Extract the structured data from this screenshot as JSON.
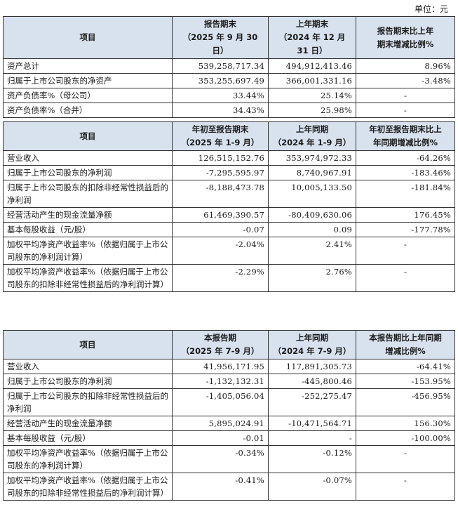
{
  "unit_label": "单位：元",
  "table1": {
    "headers": [
      {
        "line1": "项目",
        "line2": ""
      },
      {
        "line1": "报告期末",
        "line2": "（2025 年 9 月 30 日）"
      },
      {
        "line1": "上年期末",
        "line2": "（2024 年 12 月 31 日）"
      },
      {
        "line1": "报告期末比上年",
        "line2": "期末增减比例%"
      }
    ],
    "rows": [
      [
        "资产总计",
        "539,258,717.34",
        "494,912,413.46",
        "8.96%"
      ],
      [
        "归属于上市公司股东的净资产",
        "353,255,697.49",
        "366,001,331.16",
        "-3.48%"
      ],
      [
        "资产负债率%（母公司）",
        "33.44%",
        "25.14%",
        "-"
      ],
      [
        "资产负债率%（合并）",
        "34.43%",
        "25.98%",
        "-"
      ]
    ]
  },
  "table2": {
    "headers": [
      {
        "line1": "项目",
        "line2": ""
      },
      {
        "line1": "年初至报告期末",
        "line2": "（2025 年 1-9 月）"
      },
      {
        "line1": "上年同期",
        "line2": "（2024 年 1-9 月）"
      },
      {
        "line1": "年初至报告期末比上",
        "line2": "年同期增减比例%"
      }
    ],
    "rows": [
      [
        "营业收入",
        "126,515,152.76",
        "353,974,972.33",
        "-64.26%"
      ],
      [
        "归属于上市公司股东的净利润",
        "-7,295,595.97",
        "8,740,967.91",
        "-183.46%"
      ],
      [
        "归属于上市公司股东的扣除非经常性损益后的净利润",
        "-8,188,473.78",
        "10,005,133.50",
        "-181.84%"
      ],
      [
        "经营活动产生的现金流量净额",
        "61,469,390.57",
        "-80,409,630.06",
        "176.45%"
      ],
      [
        "基本每股收益（元/股）",
        "-0.07",
        "0.09",
        "-177.78%"
      ],
      [
        "加权平均净资产收益率%（依据归属于上市公司股东的净利润计算）",
        "-2.04%",
        "2.41%",
        "-"
      ],
      [
        "加权平均净资产收益率%（依据归属于上市公司股东的扣除非经常性损益后的净利润计算）",
        "-2.29%",
        "2.76%",
        "-"
      ]
    ]
  },
  "table3": {
    "headers": [
      {
        "line1": "项目",
        "line2": ""
      },
      {
        "line1": "本报告期",
        "line2": "（2025 年 7-9 月）"
      },
      {
        "line1": "上年同期",
        "line2": "（2024 年 7-9 月）"
      },
      {
        "line1": "本报告期比上年同期",
        "line2": "增减比例%"
      }
    ],
    "rows": [
      [
        "营业收入",
        "41,956,171.95",
        "117,891,305.73",
        "-64.41%"
      ],
      [
        "归属于上市公司股东的净利润",
        "-1,132,132.31",
        "-445,800.46",
        "-153.95%"
      ],
      [
        "归属于上市公司股东的扣除非经常性损益后的净利润",
        "-1,405,056.04",
        "-252,275.47",
        "-456.95%"
      ],
      [
        "经营活动产生的现金流量净额",
        "5,895,024.91",
        "-10,471,564.71",
        "156.30%"
      ],
      [
        "基本每股收益（元/股）",
        "-0.01",
        "-",
        "-100.00%"
      ],
      [
        "加权平均净资产收益率%（依据归属于上市公司股东的净利润计算）",
        "-0.34%",
        "-0.12%",
        "-"
      ],
      [
        "加权平均净资产收益率%（依据归属于上市公司股东的扣除非经常性损益后的净利润计算）",
        "-0.41%",
        "-0.07%",
        "-"
      ]
    ]
  }
}
